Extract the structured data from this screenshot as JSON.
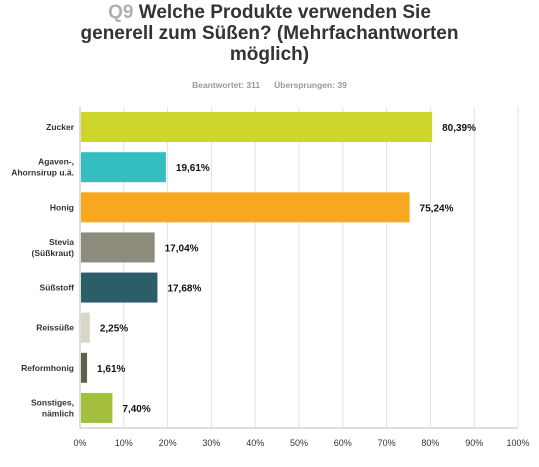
{
  "question": {
    "number": "Q9",
    "title_line1": "Welche Produkte verwenden Sie",
    "title_line2": "generell zum Süßen? (Mehrfachantworten",
    "title_line3": "möglich)"
  },
  "stats": {
    "answered": "Beantwortet: 311",
    "skipped": "Übersprungen: 39"
  },
  "chart_data": {
    "type": "bar",
    "orientation": "horizontal",
    "categories": [
      "Zucker",
      "Agaven-,\nAhornsirup u.ä.",
      "Honig",
      "Stevia\n(Süßkraut)",
      "Süßstoff",
      "Reissüße",
      "Reformhonig",
      "Sonstiges,\nnämlich"
    ],
    "values": [
      80.39,
      19.61,
      75.24,
      17.04,
      17.68,
      2.25,
      1.61,
      7.4
    ],
    "value_labels": [
      "80,39%",
      "19,61%",
      "75,24%",
      "17,04%",
      "17,68%",
      "2,25%",
      "1,61%",
      "7,40%"
    ],
    "colors": [
      "#cdd52b",
      "#34bec0",
      "#f6a821",
      "#8d8b7b",
      "#2c5e6a",
      "#d8d6c7",
      "#5e6248",
      "#a4bf3c"
    ],
    "xlim": [
      0,
      100
    ],
    "x_ticks": [
      "0%",
      "10%",
      "20%",
      "30%",
      "40%",
      "50%",
      "60%",
      "70%",
      "80%",
      "90%",
      "100%"
    ],
    "grid": true,
    "legend": "none"
  }
}
